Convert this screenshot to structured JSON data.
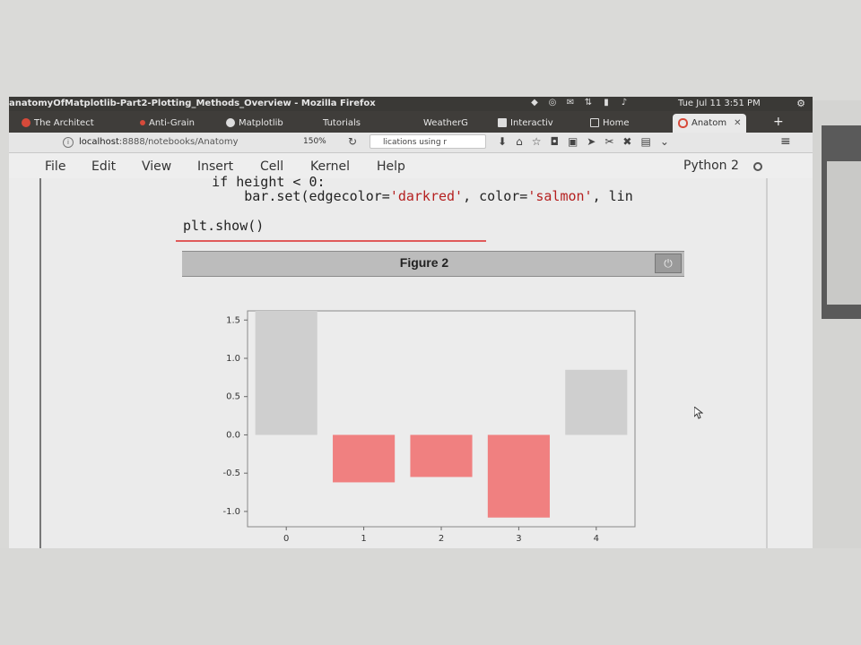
{
  "system": {
    "title": "anatomyOfMatplotlib-Part2-Plotting_Methods_Overview - Mozilla Firefox",
    "clock": "Tue Jul 11 3:51 PM",
    "icons": [
      "dropbox-icon",
      "chrome-icon",
      "mail-icon",
      "network-icon",
      "battery-icon",
      "volume-icon"
    ]
  },
  "tabs": [
    {
      "label": "The Architect",
      "color": "#d74a3a"
    },
    {
      "label": "Anti-Grain",
      "color": "#d74a3a"
    },
    {
      "label": "Matplotlib",
      "color": "#dddddd"
    },
    {
      "label": "Tutorials",
      "color": "#666666"
    },
    {
      "label": "WeatherG",
      "color": "#666666"
    },
    {
      "label": "Interactiv",
      "color": "#dddddd"
    },
    {
      "label": "Home",
      "color": "#dddddd"
    },
    {
      "label": "Anatom",
      "color": "#d74a3a"
    }
  ],
  "nav": {
    "url_host": "localhost",
    "url_path": ":8888/notebooks/Anatomy",
    "zoom": "150%",
    "search": "lications using r"
  },
  "menu": [
    "File",
    "Edit",
    "View",
    "Insert",
    "Cell",
    "Kernel",
    "Help"
  ],
  "kernel": "Python 2",
  "code": {
    "line1": "    if height < 0:",
    "line2_pre": "        bar.set(edgecolor=",
    "line2_s1": "'darkred'",
    "line2_mid": ", color=",
    "line2_s2": "'salmon'",
    "line2_post": ", lin",
    "line3": "plt.show()"
  },
  "figure": {
    "title": "Figure 2"
  },
  "chart_data": {
    "type": "bar",
    "categories": [
      "0",
      "1",
      "2",
      "3",
      "4"
    ],
    "values": [
      1.62,
      -0.62,
      -0.55,
      -1.08,
      0.85
    ],
    "colors": [
      "#cfcfcf",
      "#f08080",
      "#f08080",
      "#f08080",
      "#cfcfcf"
    ],
    "yticks": [
      "-1.0",
      "-0.5",
      "0.0",
      "0.5",
      "1.0",
      "1.5"
    ],
    "ytick_values": [
      -1.0,
      -0.5,
      0.0,
      0.5,
      1.0,
      1.5
    ],
    "ylim": [
      -1.2,
      1.62
    ],
    "title": "",
    "xlabel": "",
    "ylabel": ""
  }
}
